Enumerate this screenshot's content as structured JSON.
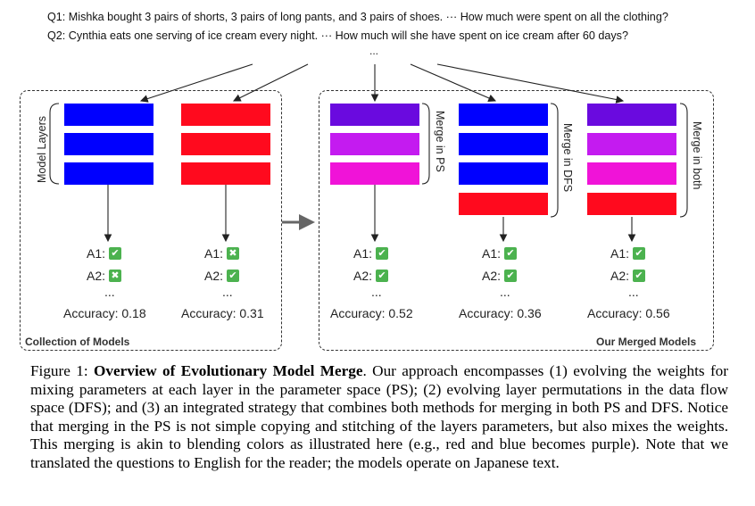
{
  "questions": {
    "q1": "Q1: Mishka bought 3 pairs of shorts, 3 pairs of long pants, and 3 pairs of shoes. ··· How much were spent on all the clothing?",
    "q2": "Q2: Cynthia eats one serving of ice cream every night. ··· How much will she have spent on ice cream after 60 days?",
    "ellipsis": "..."
  },
  "panels": {
    "collection_label": "Collection of Models",
    "merged_label": "Our Merged Models"
  },
  "side_labels": {
    "model_layers": "Model Layers",
    "merge_ps": "Merge in PS",
    "merge_dfs": "Merge in DFS",
    "merge_both": "Merge in both"
  },
  "models": [
    {
      "a1_label": "A1:",
      "a1_correct": true,
      "a2_label": "A2:",
      "a2_correct": false,
      "more": "...",
      "accuracy": "Accuracy: 0.18",
      "colors": [
        "#0000ff",
        "#0000ff",
        "#0000ff"
      ]
    },
    {
      "a1_label": "A1:",
      "a1_correct": false,
      "a2_label": "A2:",
      "a2_correct": true,
      "more": "...",
      "accuracy": "Accuracy: 0.31",
      "colors": [
        "#ff0a1e",
        "#ff0a1e",
        "#ff0a1e"
      ]
    },
    {
      "a1_label": "A1:",
      "a1_correct": true,
      "a2_label": "A2:",
      "a2_correct": true,
      "more": "...",
      "accuracy": "Accuracy: 0.52",
      "colors": [
        "#6a0adf",
        "#c41bf0",
        "#f013d8"
      ]
    },
    {
      "a1_label": "A1:",
      "a1_correct": true,
      "a2_label": "A2:",
      "a2_correct": true,
      "more": "...",
      "accuracy": "Accuracy: 0.36",
      "colors": [
        "#0000ff",
        "#0000ff",
        "#0000ff",
        "#ff0a1e"
      ]
    },
    {
      "a1_label": "A1:",
      "a1_correct": true,
      "a2_label": "A2:",
      "a2_correct": true,
      "more": "...",
      "accuracy": "Accuracy: 0.56",
      "colors": [
        "#6a0adf",
        "#c41bf0",
        "#f013d8",
        "#ff0a1e"
      ]
    }
  ],
  "icons": {
    "correct": "check-mark",
    "wrong": "cross-mark",
    "check_color": "#4cb24f"
  },
  "caption": {
    "prefix": "Figure 1: ",
    "bold": "Overview of Evolutionary Model Merge",
    "body": ". Our approach encompasses (1) evolving the weights for mixing parameters at each layer in the parameter space (PS); (2) evolving layer permutations in the data flow space (DFS); and (3) an integrated strategy that combines both methods for merging in both PS and DFS. Notice that merging in the PS is not simple copying and stitching of the layers parameters, but also mixes the weights. This merging is akin to blending colors as illustrated here (e.g., red and blue becomes purple). Note that we translated the questions to English for the reader; the models operate on Japanese text."
  }
}
